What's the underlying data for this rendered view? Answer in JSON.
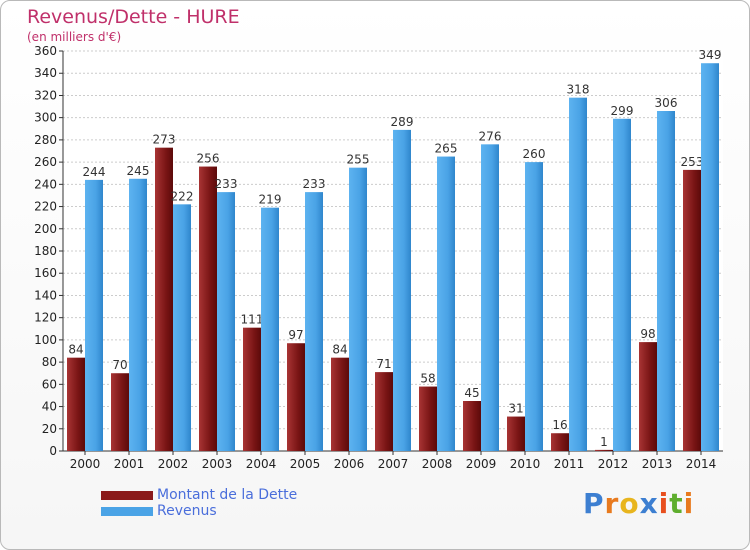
{
  "title": "Revenus/Dette - HURE",
  "subtitle": "(en milliers d'€)",
  "logo": {
    "letters": [
      "P",
      "r",
      "o",
      "x",
      "i",
      "t",
      "i"
    ],
    "colors": [
      "#3d7fd1",
      "#e87a1e",
      "#e8b51e",
      "#3d7fd1",
      "#e84f1e",
      "#5fae2e",
      "#e87a1e"
    ]
  },
  "colors": {
    "dette": "#8b1a1a",
    "revenus": "#4aa3e6",
    "grid": "#cccccc",
    "axis_text": "#222222"
  },
  "chart_data": {
    "type": "bar",
    "title": "Revenus/Dette - HURE",
    "ylabel": "(en milliers d'€)",
    "categories": [
      "2000",
      "2001",
      "2002",
      "2003",
      "2004",
      "2005",
      "2006",
      "2007",
      "2008",
      "2009",
      "2010",
      "2011",
      "2012",
      "2013",
      "2014"
    ],
    "series": [
      {
        "name": "Montant de la Dette",
        "values": [
          84,
          70,
          273,
          256,
          111,
          97,
          84,
          71,
          58,
          45,
          31,
          16,
          1,
          98,
          253
        ]
      },
      {
        "name": "Revenus",
        "values": [
          244,
          245,
          222,
          233,
          219,
          233,
          255,
          289,
          265,
          276,
          260,
          318,
          299,
          306,
          349
        ]
      }
    ],
    "ylim": [
      0,
      360
    ],
    "yticks": [
      0,
      20,
      40,
      60,
      80,
      100,
      120,
      140,
      160,
      180,
      200,
      220,
      240,
      260,
      280,
      300,
      320,
      340,
      360
    ],
    "grid": true,
    "legend": "bottom-left"
  }
}
